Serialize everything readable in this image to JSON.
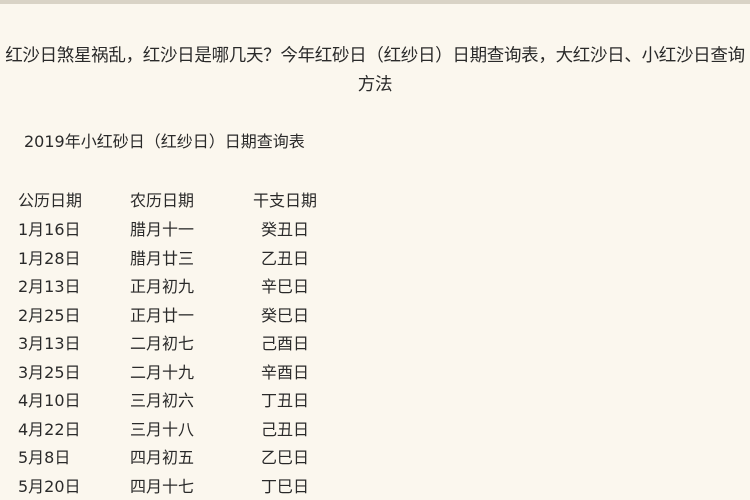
{
  "article": {
    "title": "红沙日煞星祸乱，红沙日是哪几天？今年红砂日（红纱日）日期查询表，大红沙日、小红沙日查询方法",
    "subtitle": "2019年小红砂日（红纱日）日期查询表"
  },
  "table": {
    "headers": [
      "公历日期",
      "农历日期",
      "干支日期"
    ],
    "rows": [
      [
        "1月16日",
        "腊月十一",
        "癸丑日"
      ],
      [
        "1月28日",
        "腊月廿三",
        "乙丑日"
      ],
      [
        "2月13日",
        "正月初九",
        "辛巳日"
      ],
      [
        "2月25日",
        "正月廿一",
        "癸巳日"
      ],
      [
        "3月13日",
        "二月初七",
        "己酉日"
      ],
      [
        "3月25日",
        "二月十九",
        "辛酉日"
      ],
      [
        "4月10日",
        "三月初六",
        "丁丑日"
      ],
      [
        "4月22日",
        "三月十八",
        "己丑日"
      ],
      [
        "5月8日",
        "四月初五",
        "乙巳日"
      ],
      [
        "5月20日",
        "四月十七",
        "丁巳日"
      ]
    ]
  }
}
